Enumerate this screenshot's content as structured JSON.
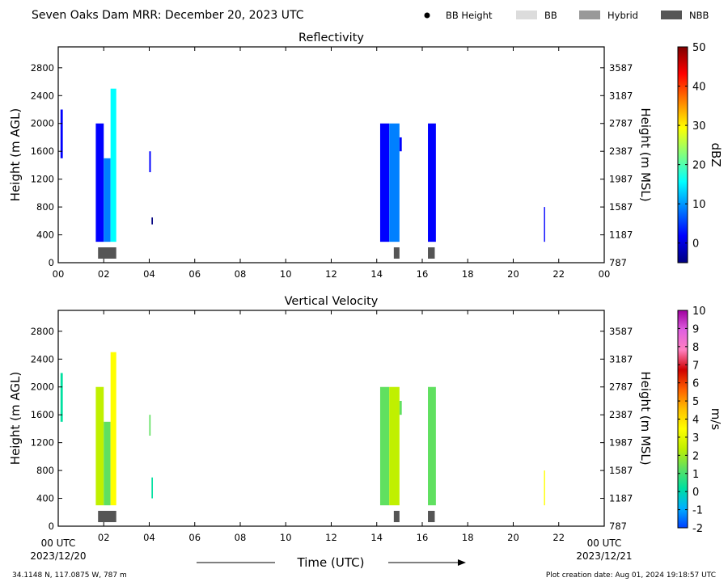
{
  "header": {
    "title": "Seven Oaks Dam MRR:  December 20, 2023 UTC",
    "legend": [
      {
        "label": "BB Height",
        "color": "#000000",
        "shape": "dot"
      },
      {
        "label": "BB",
        "color": "#dcdcdc",
        "shape": "box"
      },
      {
        "label": "Hybrid",
        "color": "#999999",
        "shape": "box"
      },
      {
        "label": "NBB",
        "color": "#555555",
        "shape": "box"
      }
    ]
  },
  "footer": {
    "location": "34.1148 N, 117.0875 W, 787 m",
    "creation": "Plot creation date: Aug 01, 2024 19:18:57 UTC",
    "xlabel": "Time (UTC)",
    "start_tick": "00 UTC",
    "start_date": "2023/12/20",
    "end_tick": "00 UTC",
    "end_date": "2023/12/21"
  },
  "chart_data": [
    {
      "type": "heatmap",
      "title": "Reflectivity",
      "ylabel": "Height (m AGL)",
      "y2label": "Height (m MSL)",
      "xlim": [
        0,
        24
      ],
      "ylim": [
        0,
        3100
      ],
      "x_ticks": [
        "00",
        "02",
        "04",
        "06",
        "08",
        "10",
        "12",
        "14",
        "16",
        "18",
        "20",
        "22",
        "00"
      ],
      "y_ticks": [
        0,
        400,
        800,
        1200,
        1600,
        2000,
        2400,
        2800
      ],
      "y2_ticks": [
        787,
        1187,
        1587,
        1987,
        2387,
        2787,
        3187,
        3587
      ],
      "colorbar": {
        "label": "dBZ",
        "min": -5,
        "max": 50,
        "ticks": [
          0,
          10,
          20,
          30,
          40,
          50
        ],
        "colors": [
          "#00007f",
          "#0000ff",
          "#0080ff",
          "#00ffff",
          "#80ff80",
          "#ffff00",
          "#ff8000",
          "#ff0000",
          "#7f0000"
        ]
      },
      "bright_band": [
        {
          "start": 1.75,
          "end": 2.55,
          "class": "NBB"
        },
        {
          "start": 14.75,
          "end": 15.0,
          "class": "NBB"
        },
        {
          "start": 16.25,
          "end": 16.55,
          "class": "NBB"
        }
      ],
      "echoes": [
        {
          "t0": 0.1,
          "t1": 0.2,
          "h0": 1500,
          "h1": 2200,
          "value": 2
        },
        {
          "t0": 1.65,
          "t1": 2.0,
          "h0": 300,
          "h1": 2000,
          "value": 5
        },
        {
          "t0": 2.0,
          "t1": 2.3,
          "h0": 300,
          "h1": 1500,
          "value": 12
        },
        {
          "t0": 2.3,
          "t1": 2.55,
          "h0": 300,
          "h1": 2500,
          "value": 15
        },
        {
          "t0": 4.0,
          "t1": 4.07,
          "h0": 1300,
          "h1": 1600,
          "value": 3
        },
        {
          "t0": 4.1,
          "t1": 4.16,
          "h0": 550,
          "h1": 650,
          "value": 0
        },
        {
          "t0": 14.15,
          "t1": 14.55,
          "h0": 300,
          "h1": 2000,
          "value": 4
        },
        {
          "t0": 14.55,
          "t1": 15.0,
          "h0": 300,
          "h1": 2000,
          "value": 9
        },
        {
          "t0": 15.0,
          "t1": 15.1,
          "h0": 1600,
          "h1": 1800,
          "value": 5
        },
        {
          "t0": 16.25,
          "t1": 16.6,
          "h0": 300,
          "h1": 2000,
          "value": 7
        },
        {
          "t0": 21.35,
          "t1": 21.4,
          "h0": 300,
          "h1": 800,
          "value": 3
        }
      ]
    },
    {
      "type": "heatmap",
      "title": "Vertical Velocity",
      "ylabel": "Height (m AGL)",
      "y2label": "Height (m MSL)",
      "xlim": [
        0,
        24
      ],
      "ylim": [
        0,
        3100
      ],
      "x_ticks": [
        "",
        "02",
        "04",
        "06",
        "08",
        "10",
        "12",
        "14",
        "16",
        "18",
        "20",
        "22",
        ""
      ],
      "y_ticks": [
        0,
        400,
        800,
        1200,
        1600,
        2000,
        2400,
        2800
      ],
      "y2_ticks": [
        787,
        1187,
        1587,
        1987,
        2387,
        2787,
        3187,
        3587
      ],
      "colorbar": {
        "label": "m/s",
        "min": -2,
        "max": 10,
        "ticks": [
          -2,
          -1,
          0,
          1,
          2,
          3,
          4,
          5,
          6,
          7,
          8,
          9,
          10
        ],
        "colors": [
          "#0040ff",
          "#00b0ff",
          "#00e0a0",
          "#60e060",
          "#c0f000",
          "#ffff00",
          "#ffc000",
          "#ff6000",
          "#d00000",
          "#ff80c0",
          "#e060e0",
          "#a000a0"
        ]
      },
      "bright_band": [
        {
          "start": 1.75,
          "end": 2.55,
          "class": "NBB"
        },
        {
          "start": 14.75,
          "end": 15.0,
          "class": "NBB"
        },
        {
          "start": 16.25,
          "end": 16.55,
          "class": "NBB"
        }
      ],
      "echoes": [
        {
          "t0": 0.1,
          "t1": 0.2,
          "h0": 1500,
          "h1": 2200,
          "value": 0.5
        },
        {
          "t0": 1.65,
          "t1": 2.0,
          "h0": 300,
          "h1": 2000,
          "value": 2
        },
        {
          "t0": 2.0,
          "t1": 2.3,
          "h0": 300,
          "h1": 1500,
          "value": 1
        },
        {
          "t0": 2.3,
          "t1": 2.55,
          "h0": 300,
          "h1": 2500,
          "value": 3.5
        },
        {
          "t0": 4.0,
          "t1": 4.06,
          "h0": 1300,
          "h1": 1600,
          "value": 1
        },
        {
          "t0": 4.1,
          "t1": 4.16,
          "h0": 400,
          "h1": 700,
          "value": 0
        },
        {
          "t0": 14.15,
          "t1": 14.55,
          "h0": 300,
          "h1": 2000,
          "value": 1.5
        },
        {
          "t0": 14.55,
          "t1": 15.0,
          "h0": 300,
          "h1": 2000,
          "value": 2
        },
        {
          "t0": 15.0,
          "t1": 15.1,
          "h0": 1600,
          "h1": 1800,
          "value": 1
        },
        {
          "t0": 16.25,
          "t1": 16.6,
          "h0": 300,
          "h1": 2000,
          "value": 1.5
        },
        {
          "t0": 21.35,
          "t1": 21.4,
          "h0": 300,
          "h1": 800,
          "value": 3
        }
      ]
    }
  ]
}
